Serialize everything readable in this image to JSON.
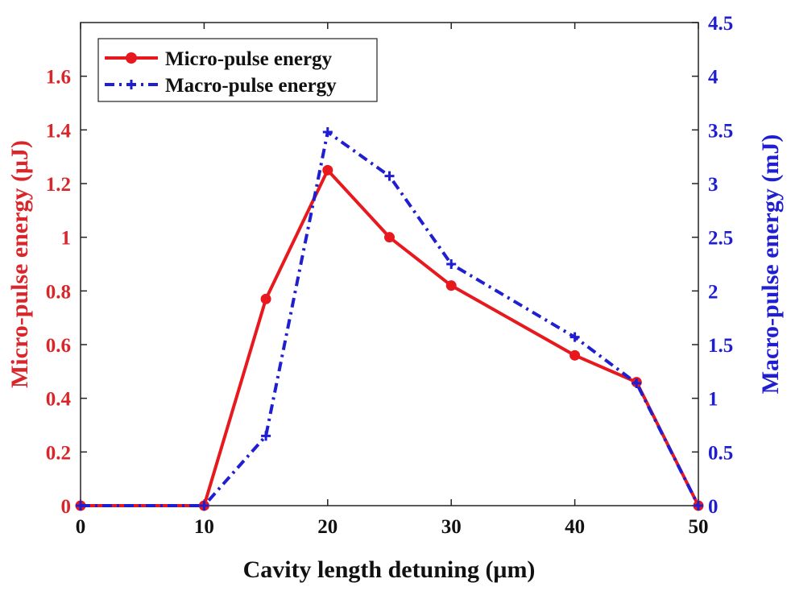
{
  "chart_data": {
    "type": "line",
    "x": [
      0,
      10,
      15,
      20,
      25,
      30,
      40,
      45,
      50
    ],
    "series": [
      {
        "name": "Micro-pulse energy",
        "axis": "left",
        "color": "#e8191e",
        "style": "solid-circle",
        "values": [
          0,
          0,
          0.77,
          1.25,
          1.0,
          0.82,
          0.56,
          0.46,
          0
        ]
      },
      {
        "name": "Macro-pulse energy",
        "axis": "right",
        "color": "#1f1fd1",
        "style": "dashdot-plus",
        "values": [
          0,
          0,
          0.65,
          3.48,
          3.07,
          2.25,
          1.57,
          1.14,
          0
        ]
      }
    ],
    "xlabel": "Cavity length detuning (μm)",
    "ylabel_left": "Micro-pulse energy (μJ)",
    "ylabel_right": "Macro-pulse energy (mJ)",
    "xlim": [
      0,
      50
    ],
    "ylim_left": [
      0,
      1.8
    ],
    "ylim_right": [
      0,
      4.5
    ],
    "xticks": [
      "0",
      "10",
      "20",
      "30",
      "40",
      "50"
    ],
    "yticks_left": [
      "0",
      "0.2",
      "0.4",
      "0.6",
      "0.8",
      "1",
      "1.2",
      "1.4",
      "1.6"
    ],
    "yticks_right": [
      "0",
      "0.5",
      "1",
      "1.5",
      "2",
      "2.5",
      "3",
      "3.5",
      "4",
      "4.5"
    ],
    "legend_position": "top-left",
    "grid": false
  }
}
